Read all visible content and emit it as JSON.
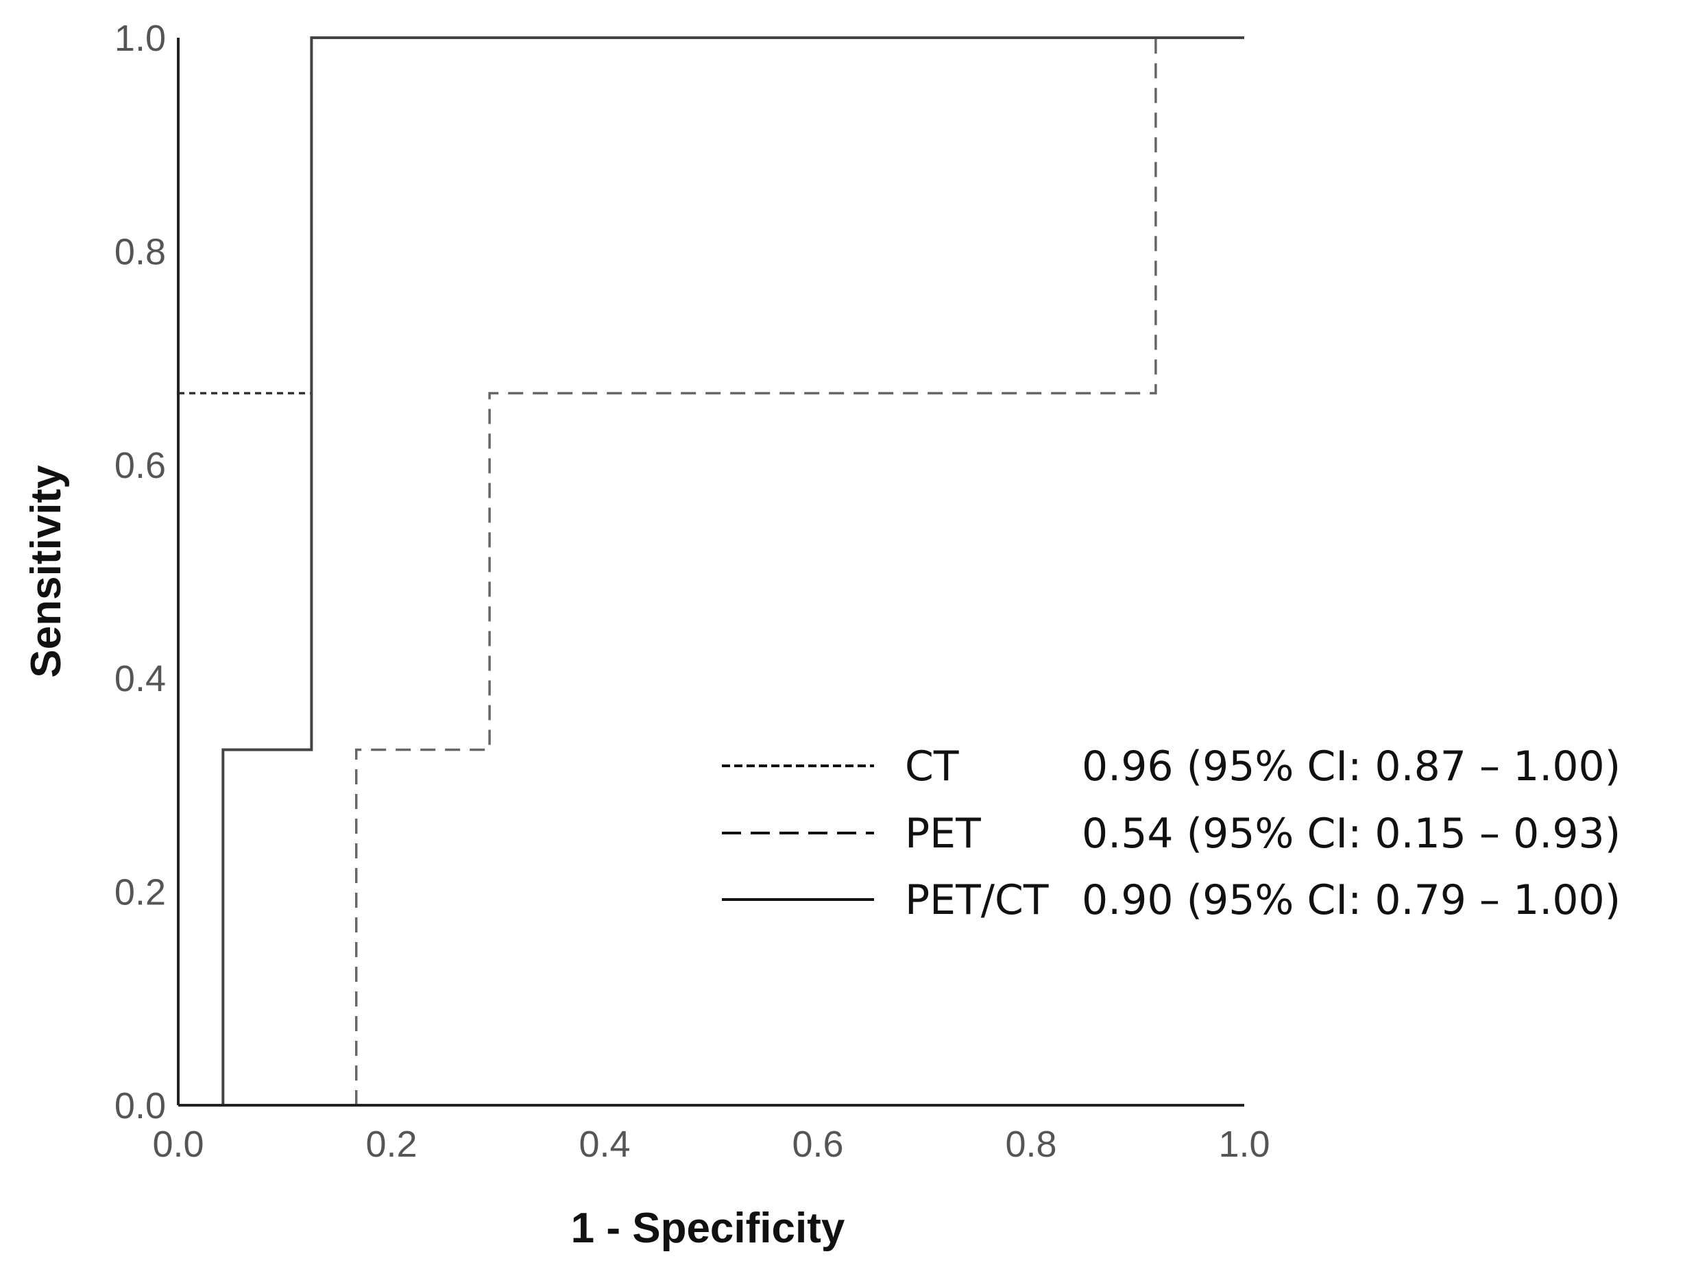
{
  "chart_data": {
    "type": "line",
    "xlabel": "1 - Specificity",
    "ylabel": "Sensitivity",
    "xlim": [
      0,
      1
    ],
    "ylim": [
      0,
      1
    ],
    "xticks": [
      "0.0",
      "0.2",
      "0.4",
      "0.6",
      "0.8",
      "1.0"
    ],
    "yticks": [
      "0.0",
      "0.2",
      "0.4",
      "0.6",
      "0.8",
      "1.0"
    ],
    "grid": false,
    "legend_position": "center-right",
    "series": [
      {
        "name": "CT",
        "legend_value": "0.96 (95% CI: 0.87 – 1.00)",
        "line_style": "dotted",
        "color": "#333333",
        "x": [
          0.0,
          0.125,
          0.125,
          1.0
        ],
        "y": [
          0.667,
          0.667,
          1.0,
          1.0
        ]
      },
      {
        "name": "PET",
        "legend_value": "0.54 (95% CI: 0.15 – 0.93)",
        "line_style": "dashed",
        "color": "#666666",
        "x": [
          0.167,
          0.167,
          0.292,
          0.292,
          0.917,
          0.917,
          1.0
        ],
        "y": [
          0.0,
          0.333,
          0.333,
          0.667,
          0.667,
          1.0,
          1.0
        ]
      },
      {
        "name": "PET/CT",
        "legend_value": "0.90 (95% CI: 0.79 – 1.00)",
        "line_style": "solid",
        "color": "#444444",
        "x": [
          0.042,
          0.042,
          0.125,
          0.125,
          1.0
        ],
        "y": [
          0.0,
          0.333,
          0.333,
          1.0,
          1.0
        ]
      }
    ]
  }
}
